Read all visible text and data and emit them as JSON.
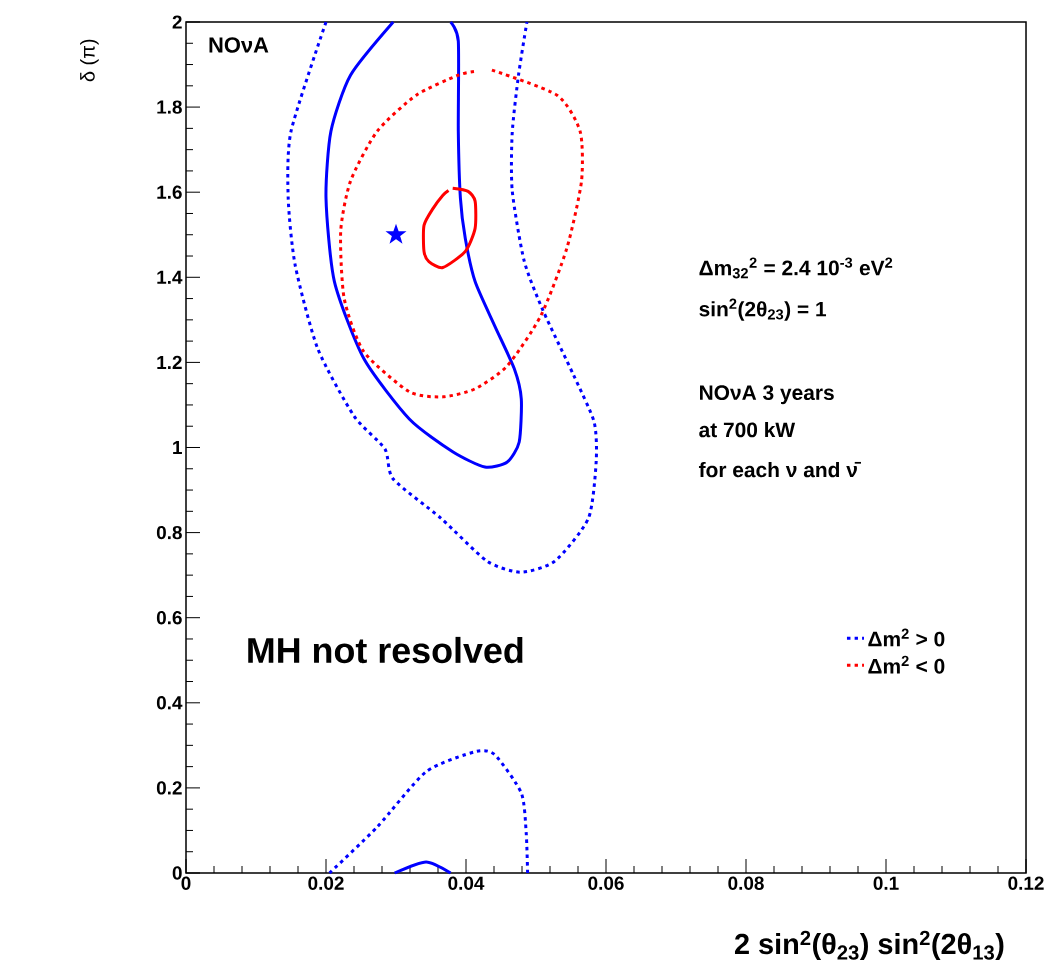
{
  "chart_data": {
    "type": "line",
    "xlabel": "2 sin$^{2}$(θ$_{23}$) sin$^{2}$(2θ$_{13}$)",
    "ylabel": "δ (π)",
    "xlim": [
      0,
      0.12
    ],
    "ylim": [
      0,
      2
    ],
    "xticks": [
      0,
      0.02,
      0.04,
      0.06,
      0.08,
      0.1,
      0.12
    ],
    "yticks": [
      0,
      0.2,
      0.4,
      0.6,
      0.8,
      1,
      1.2,
      1.4,
      1.6,
      1.8,
      2
    ],
    "legend": "right",
    "annotations": [
      "NOνA",
      "Δm$_{32}$$^{2}$ = 2.4 10$^{-3}$ eV$^{2}$",
      "sin$^{2}$(2θ$_{23}$) = 1",
      "NOνA 3 years",
      "at 700 kW",
      "for each ν and ν̄",
      "MH not resolved"
    ],
    "series": [
      {
        "name": "Δm$^{2}$ > 0",
        "color": "#0000ff",
        "line_style": "dotted",
        "x": [
          0.02,
          0.015,
          0.0146,
          0.0156,
          0.0188,
          0.024,
          0.0284,
          0.0296,
          0.0364,
          0.043,
          0.0478,
          0.0527,
          0.0575,
          0.0586,
          0.0583,
          0.0554,
          0.051,
          0.0483,
          0.0466,
          0.0466,
          0.0475,
          0.0487
        ],
        "values": [
          2.0,
          1.743,
          1.586,
          1.428,
          1.233,
          1.074,
          0.997,
          0.926,
          0.834,
          0.733,
          0.707,
          0.733,
          0.834,
          0.968,
          1.06,
          1.169,
          1.322,
          1.439,
          1.604,
          1.739,
          1.875,
          2.0
        ]
      },
      {
        "color": "#0000ff",
        "line_style": "dotted",
        "x": [
          0.0205,
          0.0273,
          0.0343,
          0.0413,
          0.0441,
          0.0479,
          0.0486,
          0.0488
        ],
        "values": [
          0.0,
          0.108,
          0.238,
          0.285,
          0.278,
          0.188,
          0.094,
          0.0
        ]
      },
      {
        "color": "#0000ff",
        "line_style": "solid",
        "x": [
          0.0296,
          0.0235,
          0.0207,
          0.02,
          0.0212,
          0.0254,
          0.0319,
          0.0381,
          0.0427,
          0.0459,
          0.0476,
          0.0479,
          0.0469,
          0.0441,
          0.0413,
          0.0399,
          0.0392,
          0.0389,
          0.0389,
          0.0378
        ],
        "values": [
          2.0,
          1.875,
          1.743,
          1.586,
          1.39,
          1.209,
          1.067,
          0.99,
          0.954,
          0.966,
          1.013,
          1.114,
          1.185,
          1.286,
          1.39,
          1.491,
          1.586,
          1.743,
          1.955,
          2.0
        ]
      },
      {
        "color": "#0000ff",
        "line_style": "solid",
        "x": [
          0.0298,
          0.0343,
          0.0378
        ],
        "values": [
          0.0,
          0.026,
          0.0
        ]
      },
      {
        "name": "Δm$^{2}$ < 0",
        "color": "#ff0000",
        "line_style": "dotted",
        "x": [
          0.0437,
          0.053,
          0.0563,
          0.0565,
          0.0544,
          0.0507,
          0.0459,
          0.0413,
          0.0367,
          0.0319,
          0.0254,
          0.0226,
          0.0221,
          0.0235,
          0.0273,
          0.0329,
          0.0389,
          0.0414
        ],
        "values": [
          1.887,
          1.828,
          1.743,
          1.626,
          1.468,
          1.31,
          1.192,
          1.138,
          1.119,
          1.131,
          1.225,
          1.35,
          1.508,
          1.626,
          1.743,
          1.828,
          1.875,
          1.884
        ]
      },
      {
        "color": "#ff0000",
        "line_style": "solid",
        "x": [
          0.0381,
          0.0403,
          0.0413,
          0.0413,
          0.0399,
          0.0367,
          0.0347,
          0.034,
          0.034,
          0.0353,
          0.0367,
          0.0375
        ],
        "values": [
          1.609,
          1.602,
          1.579,
          1.515,
          1.461,
          1.423,
          1.437,
          1.461,
          1.522,
          1.562,
          1.593,
          1.604
        ]
      },
      {
        "type": "scatter",
        "marker": "star",
        "color": "#0000ff",
        "x": [
          0.03
        ],
        "values": [
          1.5
        ]
      }
    ]
  }
}
